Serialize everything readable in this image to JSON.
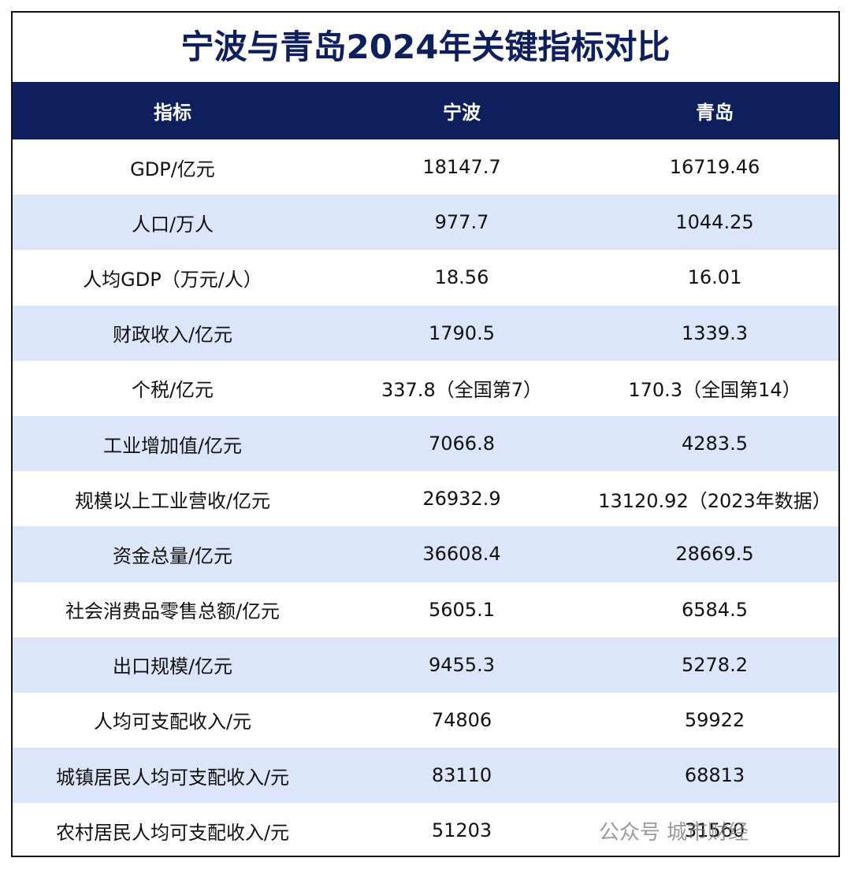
{
  "header": {
    "title": "宁波与青岛2024年关键指标对比"
  },
  "table": {
    "columns": [
      "指标",
      "宁波",
      "青岛"
    ],
    "rows": [
      [
        "GDP/亿元",
        "18147.7",
        "16719.46"
      ],
      [
        "人口/万人",
        "977.7",
        "1044.25"
      ],
      [
        "人均GDP（万元/人）",
        "18.56",
        "16.01"
      ],
      [
        "财政收入/亿元",
        "1790.5",
        "1339.3"
      ],
      [
        "个税/亿元",
        "337.8（全国第7）",
        "170.3（全国第14）"
      ],
      [
        "工业增加值/亿元",
        "7066.8",
        "4283.5"
      ],
      [
        "规模以上工业营收/亿元",
        "26932.9",
        "13120.92（2023年数据）"
      ],
      [
        "资金总量/亿元",
        "36608.4",
        "28669.5"
      ],
      [
        "社会消费品零售总额/亿元",
        "5605.1",
        "6584.5"
      ],
      [
        "出口规模/亿元",
        "9455.3",
        "5278.2"
      ],
      [
        "人均可支配收入/元",
        "74806",
        "59922"
      ],
      [
        "城镇居民人均可支配收入/元",
        "83110",
        "68813"
      ],
      [
        "农村居民人均可支配收入/元",
        "51203",
        "31560"
      ]
    ]
  },
  "watermark": {
    "platform": "公众号",
    "account": "城市财经"
  }
}
